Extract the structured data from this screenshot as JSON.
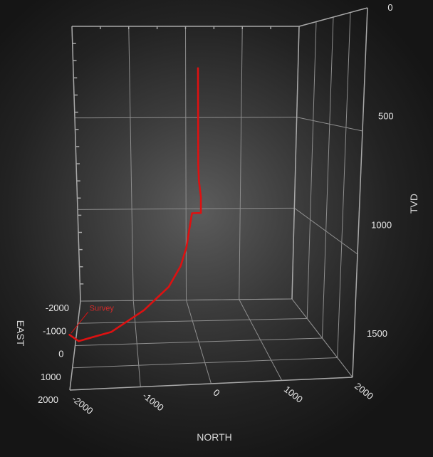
{
  "chart_data": {
    "type": "line3d",
    "axes": {
      "north": {
        "label": "NORTH",
        "range": [
          -2000,
          2000
        ],
        "ticks": [
          "-2000",
          "-1000",
          "0",
          "1000",
          "2000"
        ]
      },
      "east": {
        "label": "EAST",
        "range": [
          -2000,
          2000
        ],
        "ticks": [
          "-2000",
          "-1000",
          "0",
          "1000",
          "2000"
        ]
      },
      "tvd": {
        "label": "TVD",
        "range": [
          0,
          1700
        ],
        "reversed": true,
        "ticks": [
          "0",
          "500",
          "1000",
          "1500"
        ]
      }
    },
    "series": [
      {
        "name": "Survey",
        "color": "#dd1111",
        "points": [
          {
            "north": 0,
            "east": 0,
            "tvd": 0
          },
          {
            "north": 0,
            "east": 0,
            "tvd": 300
          },
          {
            "north": 0,
            "east": 0,
            "tvd": 600
          },
          {
            "north": 10,
            "east": 0,
            "tvd": 700
          },
          {
            "north": 40,
            "east": 0,
            "tvd": 800
          },
          {
            "north": 40,
            "east": 0,
            "tvd": 900
          },
          {
            "north": -100,
            "east": 0,
            "tvd": 900
          },
          {
            "north": -150,
            "east": 50,
            "tvd": 1000
          },
          {
            "north": -200,
            "east": 100,
            "tvd": 1100
          },
          {
            "north": -300,
            "east": 200,
            "tvd": 1200
          },
          {
            "north": -500,
            "east": 400,
            "tvd": 1300
          },
          {
            "north": -900,
            "east": 700,
            "tvd": 1400
          },
          {
            "north": -1400,
            "east": 900,
            "tvd": 1500
          },
          {
            "north": -1900,
            "east": 900,
            "tvd": 1550
          },
          {
            "north": -2050,
            "east": 600,
            "tvd": 1550
          }
        ]
      }
    ]
  }
}
